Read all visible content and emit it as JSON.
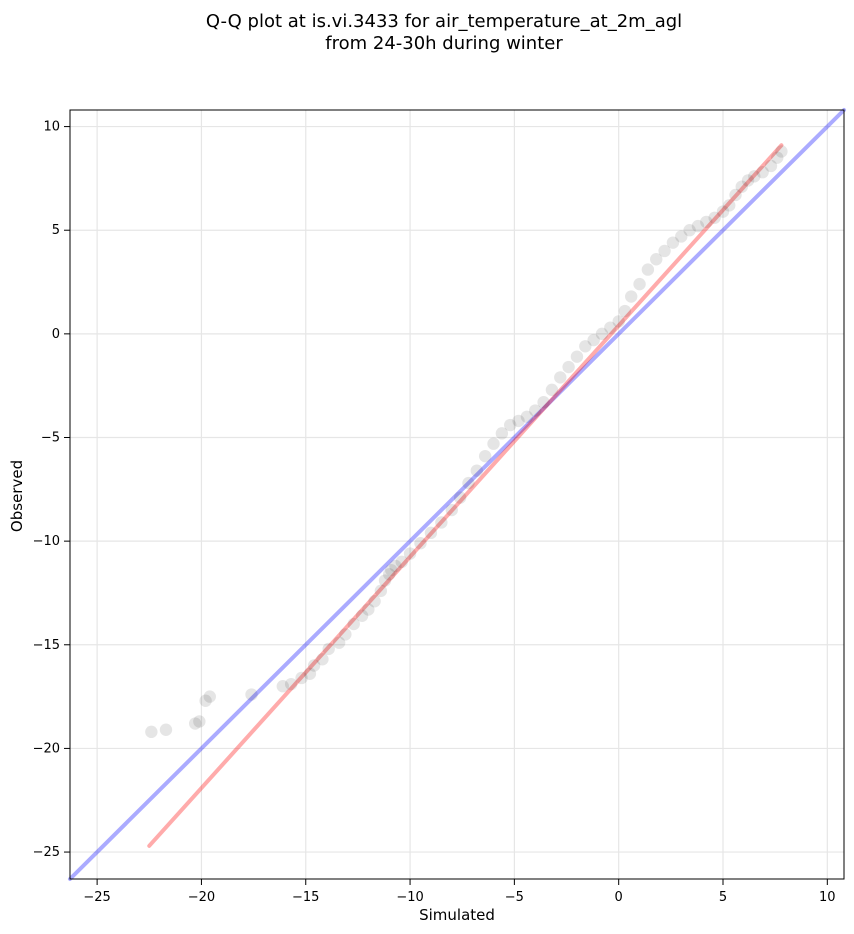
{
  "chart_data": {
    "type": "scatter",
    "title_lines": [
      "Q-Q plot at is.vi.3433 for air_temperature_at_2m_agl",
      "from 24-30h during winter"
    ],
    "xlabel": "Simulated",
    "ylabel": "Observed",
    "xlim": [
      -26.3,
      10.8
    ],
    "ylim": [
      -26.3,
      10.8
    ],
    "xticks": [
      -25,
      -20,
      -15,
      -10,
      -5,
      0,
      5,
      10
    ],
    "yticks": [
      -25,
      -20,
      -15,
      -10,
      -5,
      0,
      5,
      10
    ],
    "xtick_labels": [
      "−25",
      "−20",
      "−15",
      "−10",
      "−5",
      "0",
      "5",
      "10"
    ],
    "ytick_labels": [
      "−25",
      "−20",
      "−15",
      "−10",
      "−5",
      "0",
      "5",
      "10"
    ],
    "grid": true,
    "colors": {
      "points": "#000000",
      "identity_line": "#0000ff",
      "fit_line": "#ff0000",
      "grid": "#e6e6e6",
      "axes": "#000000"
    },
    "identity_line": {
      "x": [
        -26.3,
        10.8
      ],
      "y": [
        -26.3,
        10.8
      ]
    },
    "fit_line": {
      "x": [
        -22.5,
        7.8
      ],
      "y": [
        -24.7,
        9.1
      ]
    },
    "quantiles": {
      "x": [
        -22.4,
        -21.7,
        -20.3,
        -20.1,
        -19.8,
        -19.6,
        -17.6,
        -16.1,
        -15.7,
        -15.2,
        -14.8,
        -14.6,
        -14.2,
        -13.9,
        -13.4,
        -13.1,
        -12.7,
        -12.3,
        -12.0,
        -11.7,
        -11.4,
        -11.2,
        -11.0,
        -10.9,
        -10.7,
        -10.4,
        -10.0,
        -9.5,
        -9.0,
        -8.5,
        -8.0,
        -7.6,
        -7.2,
        -6.8,
        -6.4,
        -6.0,
        -5.6,
        -5.2,
        -4.8,
        -4.4,
        -4.0,
        -3.6,
        -3.2,
        -2.8,
        -2.4,
        -2.0,
        -1.6,
        -1.2,
        -0.8,
        -0.4,
        0.0,
        0.3,
        0.6,
        1.0,
        1.4,
        1.8,
        2.2,
        2.6,
        3.0,
        3.4,
        3.8,
        4.2,
        4.6,
        5.0,
        5.3,
        5.6,
        5.9,
        6.2,
        6.5,
        6.9,
        7.3,
        7.6,
        7.8
      ],
      "y": [
        -19.2,
        -19.1,
        -18.8,
        -18.7,
        -17.7,
        -17.5,
        -17.4,
        -17.0,
        -16.9,
        -16.6,
        -16.4,
        -16.0,
        -15.7,
        -15.2,
        -14.9,
        -14.5,
        -14.0,
        -13.6,
        -13.3,
        -12.9,
        -12.4,
        -11.9,
        -11.6,
        -11.4,
        -11.2,
        -11.0,
        -10.6,
        -10.1,
        -9.6,
        -9.1,
        -8.5,
        -7.9,
        -7.2,
        -6.6,
        -5.9,
        -5.3,
        -4.8,
        -4.4,
        -4.2,
        -4.0,
        -3.7,
        -3.3,
        -2.7,
        -2.1,
        -1.6,
        -1.1,
        -0.6,
        -0.3,
        0.0,
        0.3,
        0.6,
        1.1,
        1.8,
        2.4,
        3.1,
        3.6,
        4.0,
        4.4,
        4.7,
        5.0,
        5.2,
        5.4,
        5.6,
        5.9,
        6.2,
        6.7,
        7.1,
        7.4,
        7.6,
        7.8,
        8.1,
        8.5,
        8.8
      ]
    }
  }
}
